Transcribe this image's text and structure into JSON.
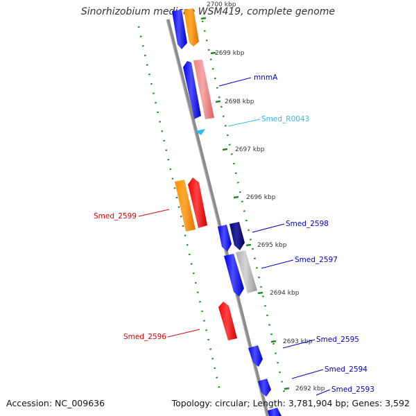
{
  "title": "Sinorhizobium medicae WSM419, complete genome",
  "accession": "Accession: NC_009636",
  "summary": "Topology: circular; Length: 3,781,904 bp; Genes: 3,592",
  "ticks": [
    {
      "id": "t2700",
      "label": "2700 kbp"
    },
    {
      "id": "t2699",
      "label": "2699 kbp"
    },
    {
      "id": "t2698",
      "label": "2698 kbp"
    },
    {
      "id": "t2697",
      "label": "2697 kbp"
    },
    {
      "id": "t2696",
      "label": "2696 kbp"
    },
    {
      "id": "t2695",
      "label": "2695 kbp"
    },
    {
      "id": "t2694",
      "label": "2694 kbp"
    },
    {
      "id": "t2693",
      "label": "2693 kbp"
    },
    {
      "id": "t2692",
      "label": "2692 kbp"
    }
  ],
  "gene_labels": [
    {
      "id": "mnmA",
      "label": "mnmA",
      "color": "#0000cc"
    },
    {
      "id": "R0043",
      "label": "Smed_R0043",
      "color": "#33bbee"
    },
    {
      "id": "2599",
      "label": "Smed_2599",
      "color": "#dd0000"
    },
    {
      "id": "2598",
      "label": "Smed_2598",
      "color": "#0000cc"
    },
    {
      "id": "2597",
      "label": "Smed_2597",
      "color": "#0000cc"
    },
    {
      "id": "2596",
      "label": "Smed_2596",
      "color": "#dd0000"
    },
    {
      "id": "2595",
      "label": "Smed_2595",
      "color": "#0000cc"
    },
    {
      "id": "2594",
      "label": "Smed_2594",
      "color": "#0000cc"
    },
    {
      "id": "2593",
      "label": "Smed_2593",
      "color": "#0000cc"
    }
  ],
  "colors": {
    "backbone": "#8c8c8c",
    "tick_dots": "#1f8a1f",
    "tick_text": "#333333",
    "gene_blue": "#0000ff",
    "gene_orange": "#ff8c00",
    "gene_red": "#ff0000",
    "gene_pink": "#f08080",
    "gene_navy": "#00007a",
    "gene_gray": "#b0b0b0",
    "gene_cyan": "#33bbee"
  }
}
